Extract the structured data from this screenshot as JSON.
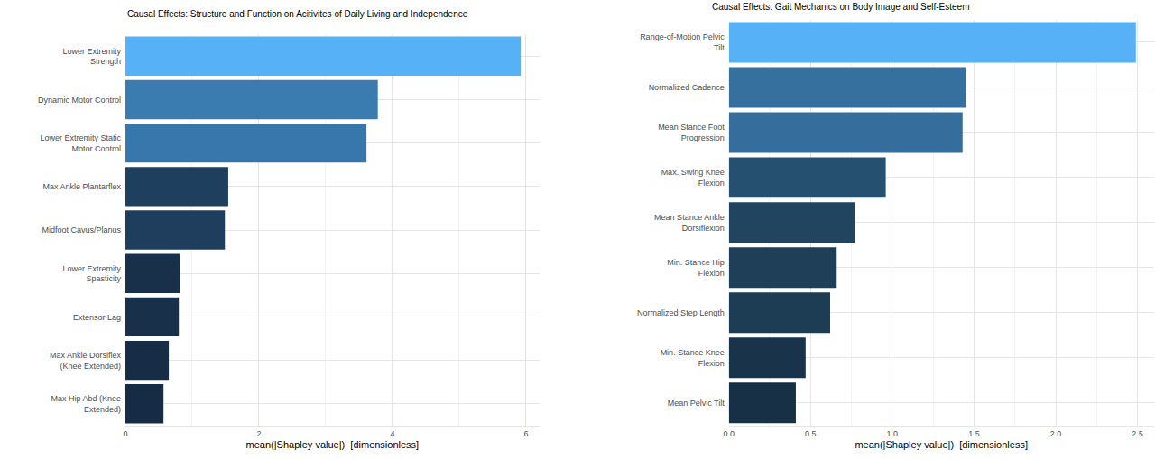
{
  "chart_data": [
    {
      "type": "bar",
      "orientation": "horizontal",
      "title": "Causal Effects: Structure and Function on Acitivites of Daily Living and Independence",
      "x_label": "mean(|Shapley value|)  [dimensionless]",
      "categories": [
        "Lower Extremity Strength",
        "Dynamic Motor Control",
        "Lower Extremity Static Motor Control",
        "Max Ankle Plantarflex",
        "Midfoot Cavus/Planus",
        "Lower Extremity Spasticity",
        "Extensor Lag",
        "Max Ankle Dorsiflex (Knee Extended)",
        "Max Hip Abd (Knee Extended)"
      ],
      "values": [
        5.92,
        3.78,
        3.61,
        1.54,
        1.49,
        0.82,
        0.8,
        0.65,
        0.57
      ],
      "colors": [
        "#56b1f7",
        "#3a7bb0",
        "#3877ab",
        "#1f3f5f",
        "#1f3e5e",
        "#18304a",
        "#183049",
        "#172d46",
        "#162c45"
      ],
      "xlim": [
        0,
        6.2
      ],
      "xticks": [
        0,
        2,
        4,
        6
      ],
      "grid": true
    },
    {
      "type": "bar",
      "orientation": "horizontal",
      "title": "Causal Effects: Gait Mechanics on Body Image and Self-Esteem",
      "x_label": "mean(|Shapley value|)  [dimensionless]",
      "categories": [
        "Range-of-Motion Pelvic Tilt",
        "Normalized Cadence",
        "Mean Stance Foot Progression",
        "Max. Swing Knee Flexion",
        "Mean Stance Ankle Dorsiflexion",
        "Min. Stance Hip Flexion",
        "Normalized Step Length",
        "Min. Stance Knee Flexion",
        "Mean Pelvic Tilt"
      ],
      "values": [
        2.49,
        1.45,
        1.43,
        0.96,
        0.77,
        0.66,
        0.62,
        0.47,
        0.41
      ],
      "colors": [
        "#56b1f7",
        "#36709f",
        "#356e9d",
        "#26506f",
        "#21455f",
        "#1e3f57",
        "#1d3d55",
        "#19334a",
        "#183046"
      ],
      "xlim": [
        0,
        2.6
      ],
      "xticks": [
        {
          "value": 0,
          "label": "0.0"
        },
        {
          "value": 0.5,
          "label": "0.5"
        },
        {
          "value": 1,
          "label": "1.0"
        },
        {
          "value": 1.5,
          "label": "1.5"
        },
        {
          "value": 2,
          "label": "2.0"
        },
        {
          "value": 2.5,
          "label": "2.5"
        }
      ],
      "grid": true
    }
  ]
}
